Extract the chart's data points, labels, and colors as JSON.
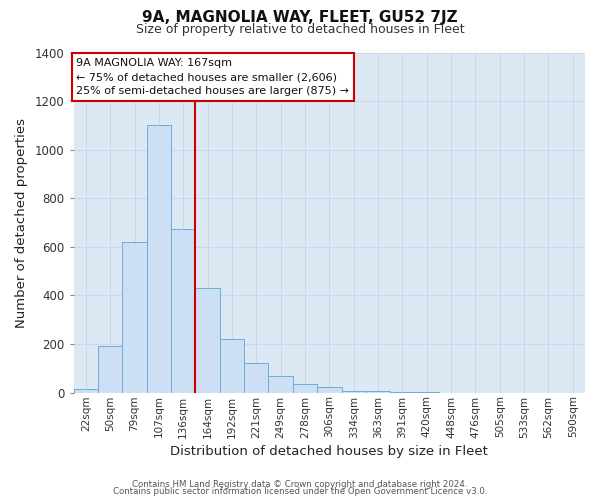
{
  "title": "9A, MAGNOLIA WAY, FLEET, GU52 7JZ",
  "subtitle": "Size of property relative to detached houses in Fleet",
  "xlabel": "Distribution of detached houses by size in Fleet",
  "ylabel": "Number of detached properties",
  "bar_labels": [
    "22sqm",
    "50sqm",
    "79sqm",
    "107sqm",
    "136sqm",
    "164sqm",
    "192sqm",
    "221sqm",
    "249sqm",
    "278sqm",
    "306sqm",
    "334sqm",
    "363sqm",
    "391sqm",
    "420sqm",
    "448sqm",
    "476sqm",
    "505sqm",
    "533sqm",
    "562sqm",
    "590sqm"
  ],
  "bar_values": [
    15,
    190,
    620,
    1100,
    675,
    430,
    220,
    120,
    70,
    35,
    25,
    8,
    5,
    3,
    2,
    0,
    0,
    0,
    0,
    0,
    0
  ],
  "bar_color": "#ccdff4",
  "bar_edge_color": "#6aaed6",
  "vline_color": "#cc0000",
  "ylim": [
    0,
    1400
  ],
  "yticks": [
    0,
    200,
    400,
    600,
    800,
    1000,
    1200,
    1400
  ],
  "annotation_title": "9A MAGNOLIA WAY: 167sqm",
  "annotation_line1": "← 75% of detached houses are smaller (2,606)",
  "annotation_line2": "25% of semi-detached houses are larger (875) →",
  "footer1": "Contains HM Land Registry data © Crown copyright and database right 2024.",
  "footer2": "Contains public sector information licensed under the Open Government Licence v3.0.",
  "grid_color": "#c8d8e8",
  "bg_color": "#dce8f4"
}
